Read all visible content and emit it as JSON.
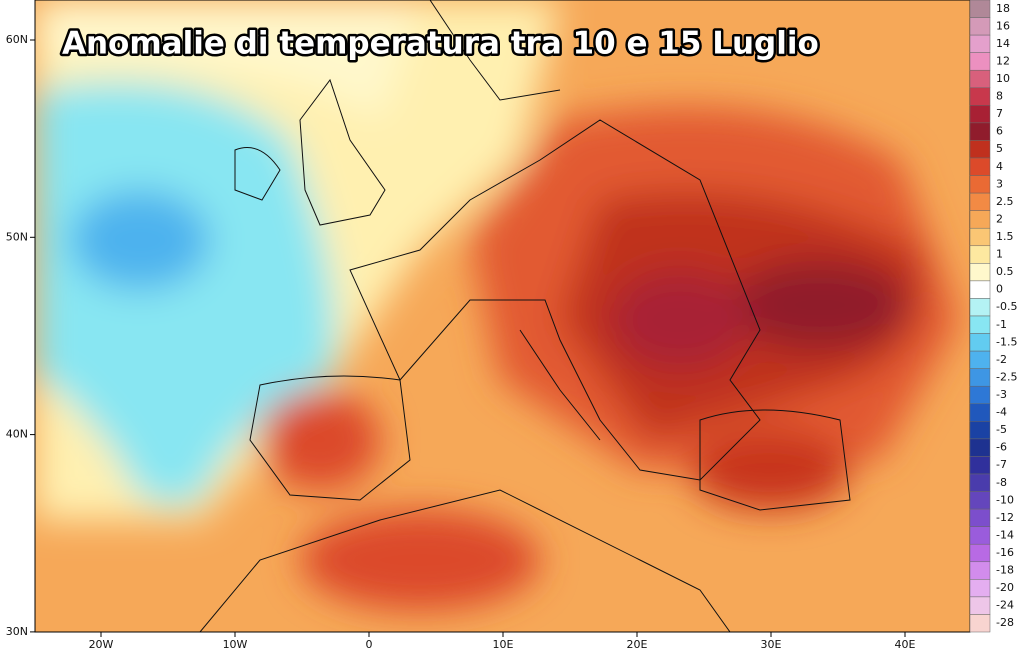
{
  "title": "Anomalie di temperatura tra 10 e 15 Luglio",
  "lat_labels": [
    "60N",
    "50N",
    "40N",
    "30N"
  ],
  "lon_labels": [
    "20W",
    "10W",
    "0",
    "10E",
    "20E",
    "30E",
    "40E"
  ],
  "colorbar": {
    "levels": [
      18,
      16,
      14,
      12,
      10,
      8,
      7,
      6,
      5,
      4,
      3,
      2.5,
      2,
      1.5,
      1,
      0.5,
      0,
      -0.5,
      -1,
      -1.5,
      -2,
      -2.5,
      -3,
      -4,
      -5,
      -6,
      -7,
      -8,
      -10,
      -12,
      -14,
      -16,
      -18,
      -20,
      -24,
      -28
    ],
    "colors": [
      "#b08898",
      "#d49ab8",
      "#e4a0cc",
      "#ec90c0",
      "#d8607c",
      "#c8384c",
      "#a82034",
      "#901c2c",
      "#c0301e",
      "#dc4a2a",
      "#ea6a34",
      "#f28a44",
      "#f6a858",
      "#fac674",
      "#fde8a0",
      "#fff8cc",
      "#ffffff",
      "#b4f2f4",
      "#88e6f2",
      "#62ccf0",
      "#4eb2ee",
      "#3e96e4",
      "#2e78d6",
      "#2058bc",
      "#1a42a4",
      "#1e3290",
      "#30309c",
      "#4a3cac",
      "#6446bc",
      "#7c4ecc",
      "#9a5cdc",
      "#b86ae4",
      "#d28cec",
      "#e4aef0",
      "#eec6e8",
      "#f8d4d0"
    ]
  }
}
